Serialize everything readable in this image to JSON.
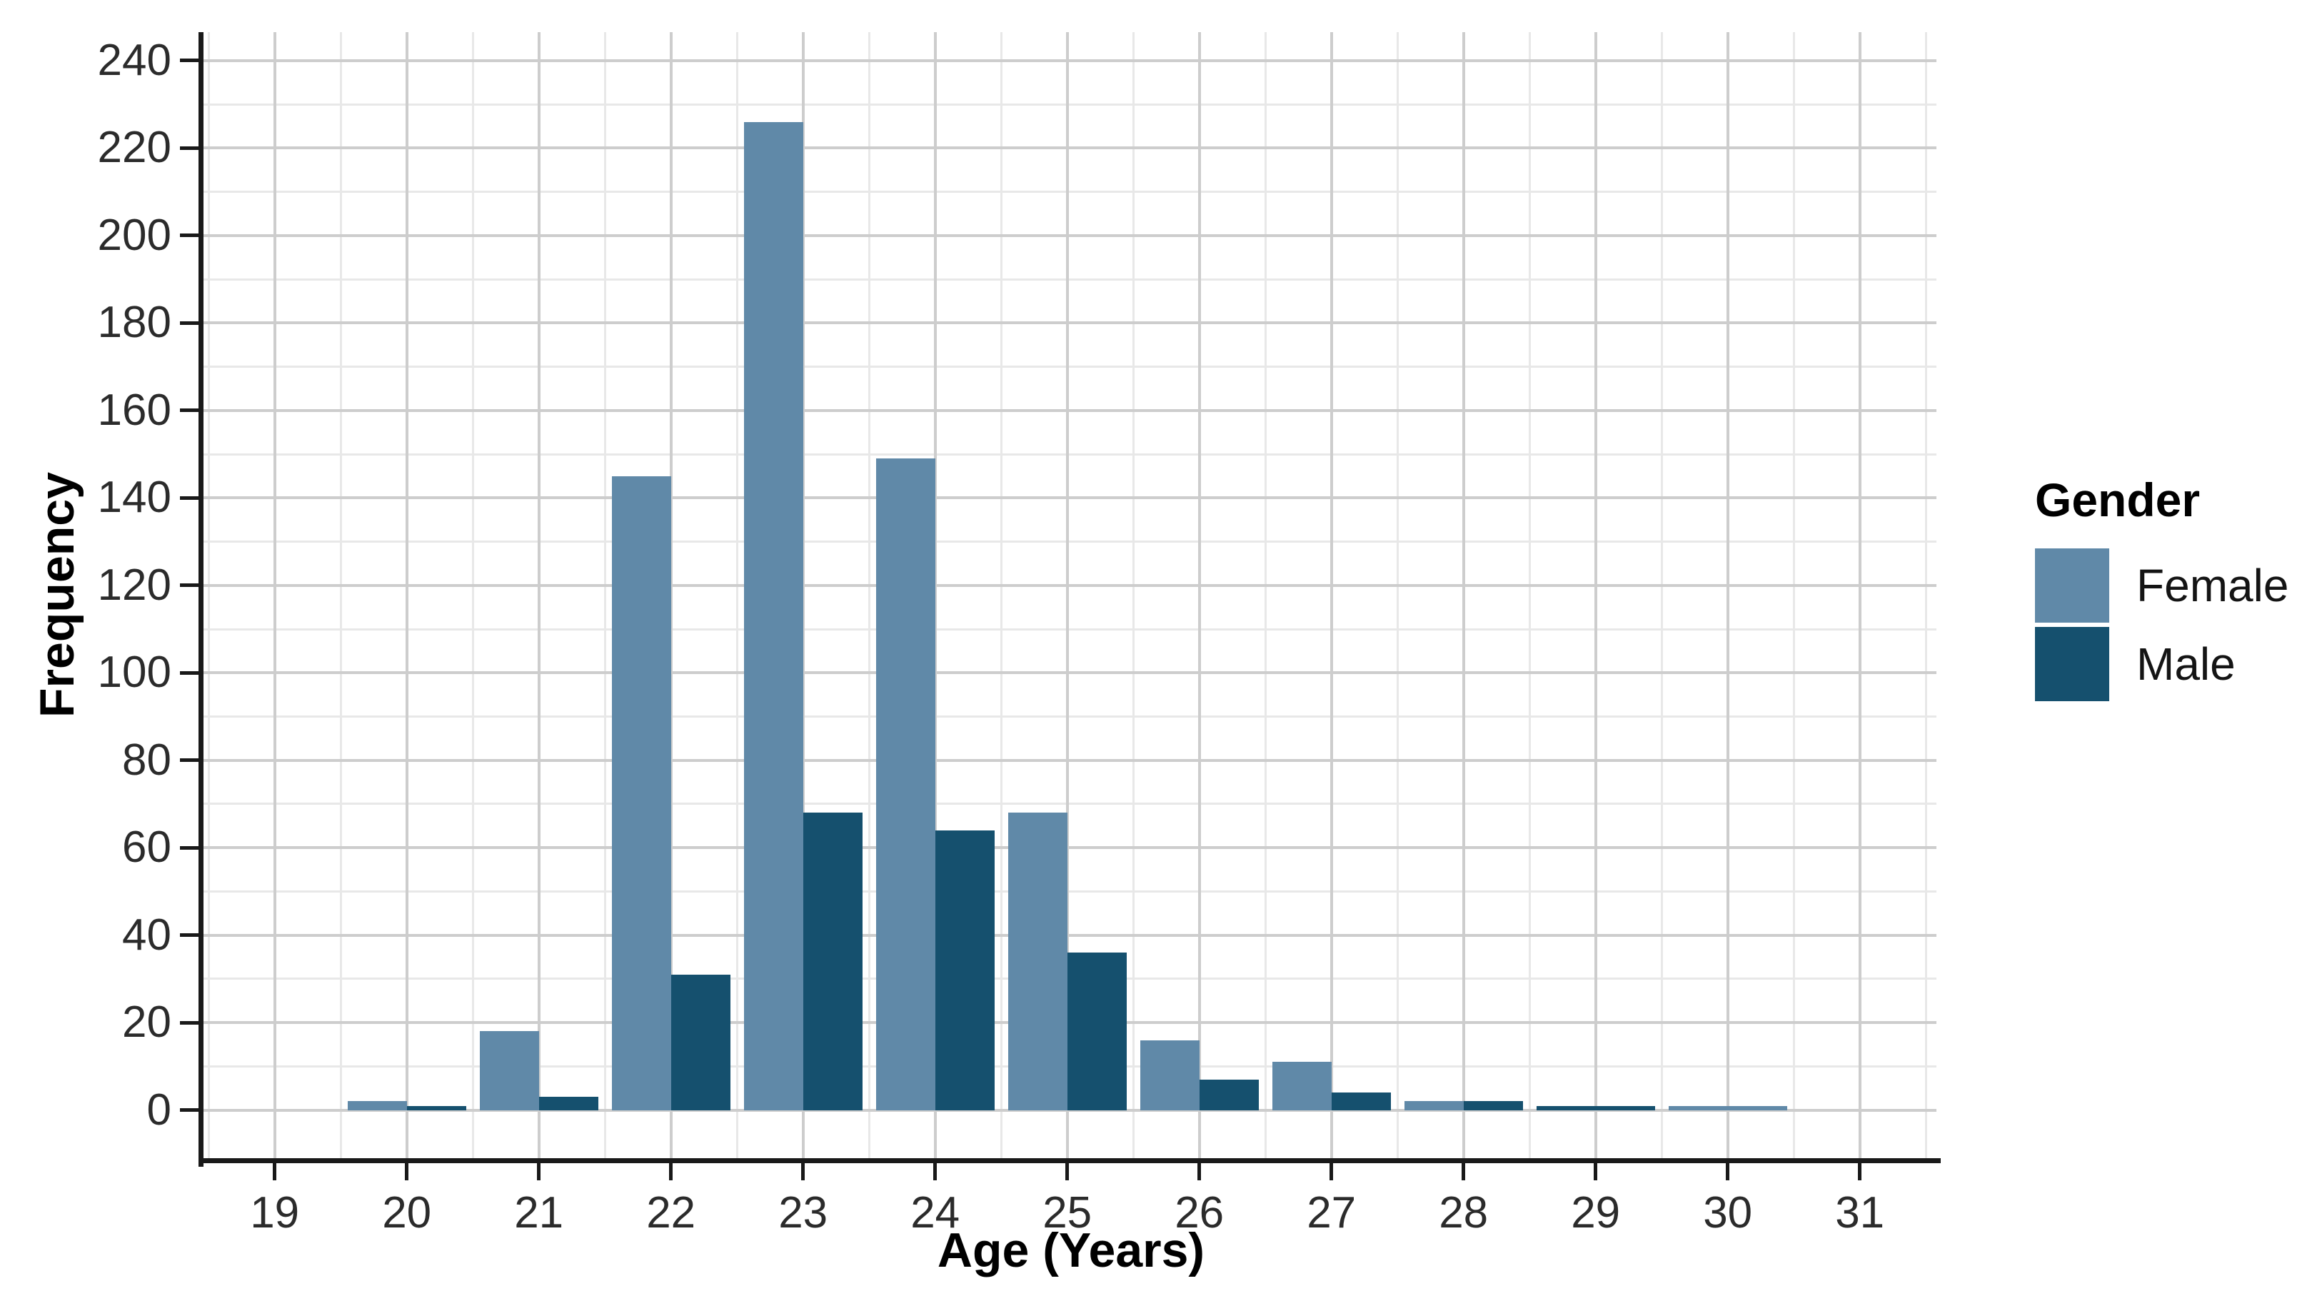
{
  "chart_data": {
    "type": "bar",
    "variant": "dodged-histogram",
    "title": "",
    "xlabel": "Age (Years)",
    "ylabel": "Frequency",
    "categories": [
      19,
      20,
      21,
      22,
      23,
      24,
      25,
      26,
      27,
      28,
      29,
      30,
      31
    ],
    "series": [
      {
        "name": "Female",
        "color": "#6089a8",
        "values": [
          null,
          2,
          18,
          145,
          226,
          149,
          68,
          16,
          11,
          2,
          null,
          1,
          null
        ]
      },
      {
        "name": "Male",
        "color": "#15506e",
        "values": [
          null,
          1,
          3,
          31,
          68,
          64,
          36,
          7,
          4,
          2,
          1,
          null,
          null
        ]
      }
    ],
    "x_ticks": [
      19,
      20,
      21,
      22,
      23,
      24,
      25,
      26,
      27,
      28,
      29,
      30,
      31
    ],
    "y_ticks": [
      0,
      20,
      40,
      60,
      80,
      100,
      120,
      140,
      160,
      180,
      200,
      220,
      240
    ],
    "xlim": [
      18.45,
      31.58
    ],
    "ylim": [
      -11,
      246.5
    ],
    "bar_half_width": 0.45,
    "legend": {
      "title": "Gender",
      "position": "right"
    },
    "grid": {
      "major_color": "#cdcdcd",
      "minor_color": "#e8e8e8",
      "minor_y_step": 10,
      "minor_x_step": 0.5
    },
    "axis_color": "#191919",
    "tick_label_color": "#2b2b2b",
    "background": "#ffffff"
  }
}
